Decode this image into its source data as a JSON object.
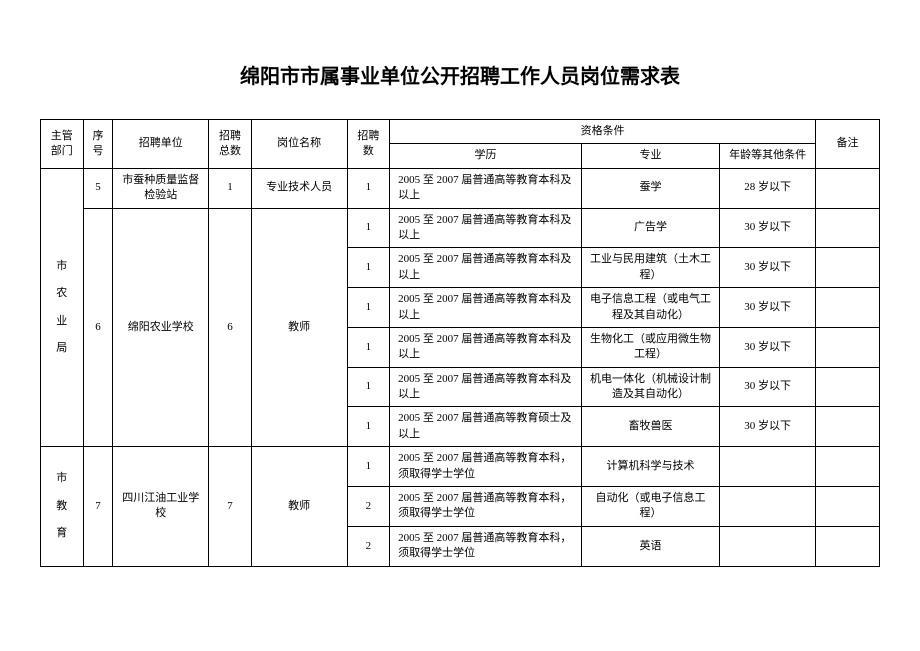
{
  "title": "绵阳市市属事业单位公开招聘工作人员岗位需求表",
  "headers": {
    "dept": "主管部门",
    "seq": "序号",
    "unit": "招聘单位",
    "total": "招聘总数",
    "position": "岗位名称",
    "count": "招聘数",
    "qualification": "资格条件",
    "edu": "学历",
    "major": "专业",
    "age": "年龄等其他条件",
    "note": "备注"
  },
  "dept1": "市",
  "dept1_line2": "农",
  "dept1_line3": "业",
  "dept1_line4": "局",
  "dept2": "市",
  "dept2_line2": "教",
  "dept2_line3": "育",
  "seq5": "5",
  "seq6": "6",
  "seq7": "7",
  "unit5": "市蚕种质量监督检验站",
  "unit6": "绵阳农业学校",
  "unit7": "四川江油工业学校",
  "total5": "1",
  "total6": "6",
  "total7": "7",
  "position5": "专业技术人员",
  "position6": "教师",
  "position7": "教师",
  "rows": [
    {
      "count": "1",
      "edu": "2005 至 2007 届普通高等教育本科及以上",
      "major": "蚕学",
      "age": "28 岁以下"
    },
    {
      "count": "1",
      "edu": "2005 至 2007 届普通高等教育本科及以上",
      "major": "广告学",
      "age": "30 岁以下"
    },
    {
      "count": "1",
      "edu": "2005 至 2007 届普通高等教育本科及以上",
      "major": "工业与民用建筑（土木工程）",
      "age": "30 岁以下"
    },
    {
      "count": "1",
      "edu": "2005 至 2007 届普通高等教育本科及以上",
      "major": "电子信息工程（或电气工程及其自动化）",
      "age": "30 岁以下"
    },
    {
      "count": "1",
      "edu": "2005 至 2007 届普通高等教育本科及以上",
      "major": "生物化工（或应用微生物工程）",
      "age": "30 岁以下"
    },
    {
      "count": "1",
      "edu": "2005 至 2007 届普通高等教育本科及以上",
      "major": "机电一体化（机械设计制造及其自动化）",
      "age": "30 岁以下"
    },
    {
      "count": "1",
      "edu": "2005 至 2007 届普通高等教育硕士及以上",
      "major": "畜牧兽医",
      "age": "30 岁以下"
    },
    {
      "count": "1",
      "edu": "2005 至 2007 届普通高等教育本科，须取得学士学位",
      "major": "计算机科学与技术",
      "age": ""
    },
    {
      "count": "2",
      "edu": "2005 至 2007 届普通高等教育本科，须取得学士学位",
      "major": "自动化（或电子信息工程）",
      "age": ""
    },
    {
      "count": "2",
      "edu": "2005 至 2007 届普通高等教育本科，须取得学士学位",
      "major": "英语",
      "age": ""
    }
  ]
}
